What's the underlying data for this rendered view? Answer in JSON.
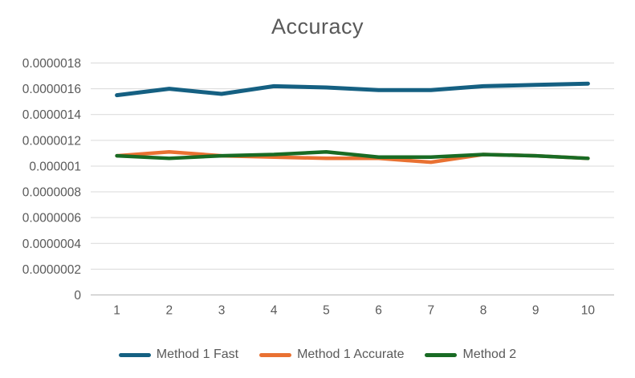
{
  "chart_data": {
    "type": "line",
    "title": "Accuracy",
    "categories": [
      "1",
      "2",
      "3",
      "4",
      "5",
      "6",
      "7",
      "8",
      "9",
      "10"
    ],
    "series": [
      {
        "name": "Method 1 Fast",
        "color": "#156082",
        "values": [
          1.55e-06,
          1.6e-06,
          1.56e-06,
          1.62e-06,
          1.61e-06,
          1.59e-06,
          1.59e-06,
          1.62e-06,
          1.63e-06,
          1.64e-06
        ]
      },
      {
        "name": "Method 1 Accurate",
        "color": "#E97132",
        "values": [
          1.08e-06,
          1.11e-06,
          1.08e-06,
          1.07e-06,
          1.06e-06,
          1.06e-06,
          1.03e-06,
          1.09e-06,
          1.08e-06,
          1.06e-06
        ]
      },
      {
        "name": "Method 2",
        "color": "#196B24",
        "values": [
          1.08e-06,
          1.06e-06,
          1.08e-06,
          1.09e-06,
          1.11e-06,
          1.07e-06,
          1.07e-06,
          1.09e-06,
          1.08e-06,
          1.06e-06
        ]
      }
    ],
    "xlabel": "",
    "ylabel": "",
    "ylim": [
      0,
      1.8e-06
    ],
    "ytick_step": 2e-07,
    "ytick_labels": [
      "0",
      "0.0000002",
      "0.0000004",
      "0.0000006",
      "0.0000008",
      "0.000001",
      "0.0000012",
      "0.0000014",
      "0.0000016",
      "0.0000018"
    ],
    "grid": "horizontal",
    "legend_position": "bottom",
    "colors": {
      "text": "#595959",
      "gridline": "#D9D9D9",
      "axis_line": "#BFBFBF",
      "background": "#FFFFFF"
    }
  }
}
